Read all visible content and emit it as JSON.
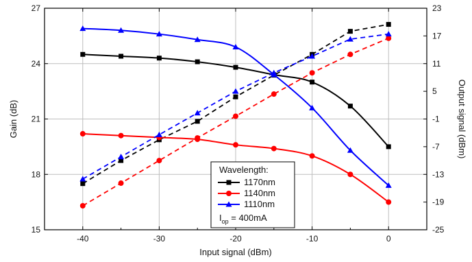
{
  "chart_data": {
    "type": "line",
    "title": "",
    "xlabel": "Input signal (dBm)",
    "ylabel_left": "Gain (dB)",
    "ylabel_right": "Output signal (dBm)",
    "xlim": [
      -45,
      5
    ],
    "ylim_left": [
      15,
      27
    ],
    "ylim_right": [
      -25,
      23
    ],
    "x_ticks": [
      -40,
      -30,
      -20,
      -10,
      0
    ],
    "y_left_ticks": [
      15,
      18,
      21,
      24,
      27
    ],
    "y_right_ticks": [
      -25,
      -19,
      -13,
      -7,
      -1,
      5,
      11,
      17,
      23
    ],
    "grid": true,
    "legend": {
      "title": "Wavelength:",
      "note_main": "I",
      "note_sub": "op",
      "note_rest": " = 400mA",
      "placement": "bottom-center"
    },
    "x": [
      -40,
      -35,
      -30,
      -25,
      -20,
      -15,
      -10,
      -5,
      0
    ],
    "series": [
      {
        "name": "1170nm",
        "color": "#000000",
        "marker": "square",
        "gain": [
          24.5,
          24.4,
          24.3,
          24.1,
          23.8,
          23.4,
          23.0,
          21.7,
          19.5
        ],
        "output": [
          -15.0,
          -10.0,
          -5.5,
          -1.5,
          3.8,
          8.5,
          13.0,
          18.0,
          19.5
        ]
      },
      {
        "name": "1140nm",
        "color": "#ff0000",
        "marker": "circle",
        "gain": [
          20.2,
          20.1,
          20.0,
          19.9,
          19.6,
          19.4,
          19.0,
          18.0,
          16.5
        ],
        "output": [
          -19.8,
          -14.9,
          -10.0,
          -5.1,
          -0.4,
          4.4,
          9.0,
          13.0,
          16.5
        ]
      },
      {
        "name": "1110nm",
        "color": "#0000ff",
        "marker": "triangle",
        "gain": [
          25.9,
          25.8,
          25.6,
          25.3,
          24.9,
          23.4,
          21.6,
          19.3,
          17.4
        ],
        "output": [
          -14.0,
          -9.2,
          -4.4,
          0.3,
          5.0,
          9.0,
          12.6,
          16.3,
          17.4
        ]
      }
    ]
  }
}
